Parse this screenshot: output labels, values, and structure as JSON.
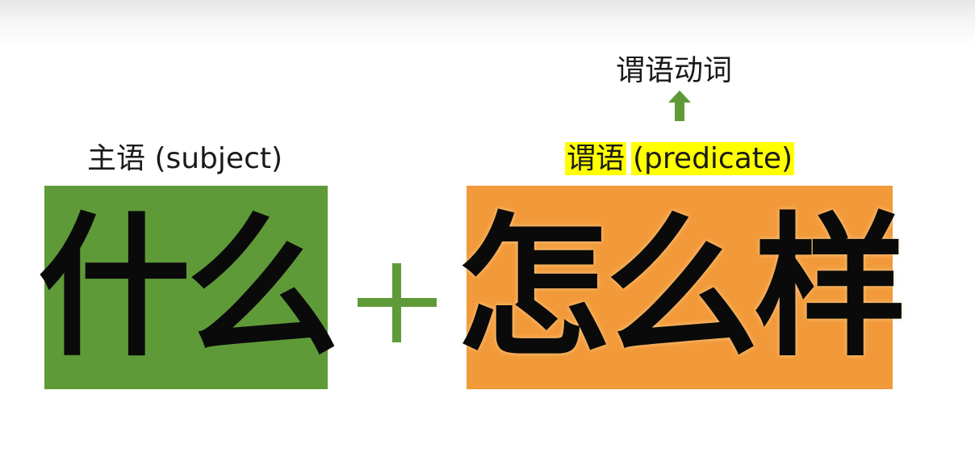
{
  "subject": {
    "label": "主语 (subject)",
    "text": "什么",
    "color": "#5f9a38"
  },
  "operator": "+",
  "predicate": {
    "label_cn": "谓语",
    "label_en": "(predicate)",
    "highlight_color": "#ffff00",
    "text": "怎么样",
    "color": "#f29a3a"
  },
  "verb_note": {
    "label": "谓语动词",
    "arrow_icon": "up-arrow-icon",
    "arrow_color": "#5f9a38"
  }
}
